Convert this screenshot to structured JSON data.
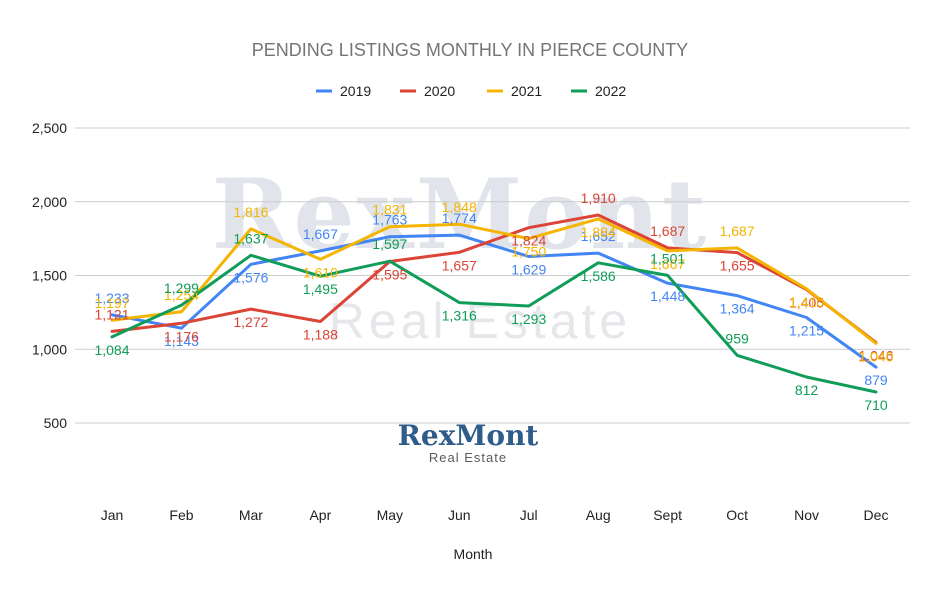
{
  "chart_data": {
    "type": "line",
    "title": "PENDING LISTINGS MONTHLY IN PIERCE COUNTY",
    "xlabel": "Month",
    "ylabel": "",
    "categories": [
      "Jan",
      "Feb",
      "Mar",
      "Apr",
      "May",
      "Jun",
      "Jul",
      "Aug",
      "Sept",
      "Oct",
      "Nov",
      "Dec"
    ],
    "ylim": [
      500,
      2500
    ],
    "yticks": [
      "2,500",
      "2,000",
      "1,500",
      "1,000",
      "500"
    ],
    "ytick_values": [
      2500,
      2000,
      1500,
      1000,
      500
    ],
    "grid": true,
    "legend_position": "top",
    "series": [
      {
        "name": "2019",
        "color": "#4285f4",
        "values": [
          1233,
          1143,
          1576,
          1667,
          1763,
          1774,
          1629,
          1652,
          1448,
          1364,
          1215,
          879
        ]
      },
      {
        "name": "2020",
        "color": "#db4437",
        "values": [
          1121,
          1176,
          1272,
          1188,
          1595,
          1657,
          1824,
          1910,
          1687,
          1655,
          1405,
          1046
        ]
      },
      {
        "name": "2021",
        "color": "#f4b400",
        "values": [
          1197,
          1254,
          1816,
          1610,
          1831,
          1848,
          1750,
          1884,
          1667,
          1687,
          1410,
          1040
        ]
      },
      {
        "name": "2022",
        "color": "#0f9d58",
        "values": [
          1084,
          1299,
          1637,
          1495,
          1597,
          1316,
          1293,
          1586,
          1501,
          959,
          812,
          710
        ]
      }
    ],
    "data_labels": [
      [
        "1,233",
        "1,143",
        "1,576",
        "1,667",
        "1,763",
        "1,774",
        "1,629",
        "1,652",
        "1,448",
        "1,364",
        "1,215",
        "879"
      ],
      [
        "1,121",
        "1,176",
        "1,272",
        "1,188",
        "1,595",
        "1,657",
        "1,824",
        "1,910",
        "1,687",
        "1,655",
        "1,405",
        "1,046"
      ],
      [
        "1,197",
        "1,254",
        "1,816",
        "1,610",
        "1,831",
        "1,848",
        "1,750",
        "1,884",
        "1,667",
        "1,687",
        "1,410",
        "1,040"
      ],
      [
        "1,084",
        "1,299",
        "1,637",
        "1,495",
        "1,597",
        "1,316",
        "1,293",
        "1,586",
        "1,501",
        "959",
        "812",
        "710"
      ]
    ]
  },
  "watermark": {
    "main": "RexMont",
    "sub": "Real Estate"
  },
  "logo": {
    "main": "RexMont",
    "sub": "Real Estate",
    "color": "#2f5d8a"
  }
}
